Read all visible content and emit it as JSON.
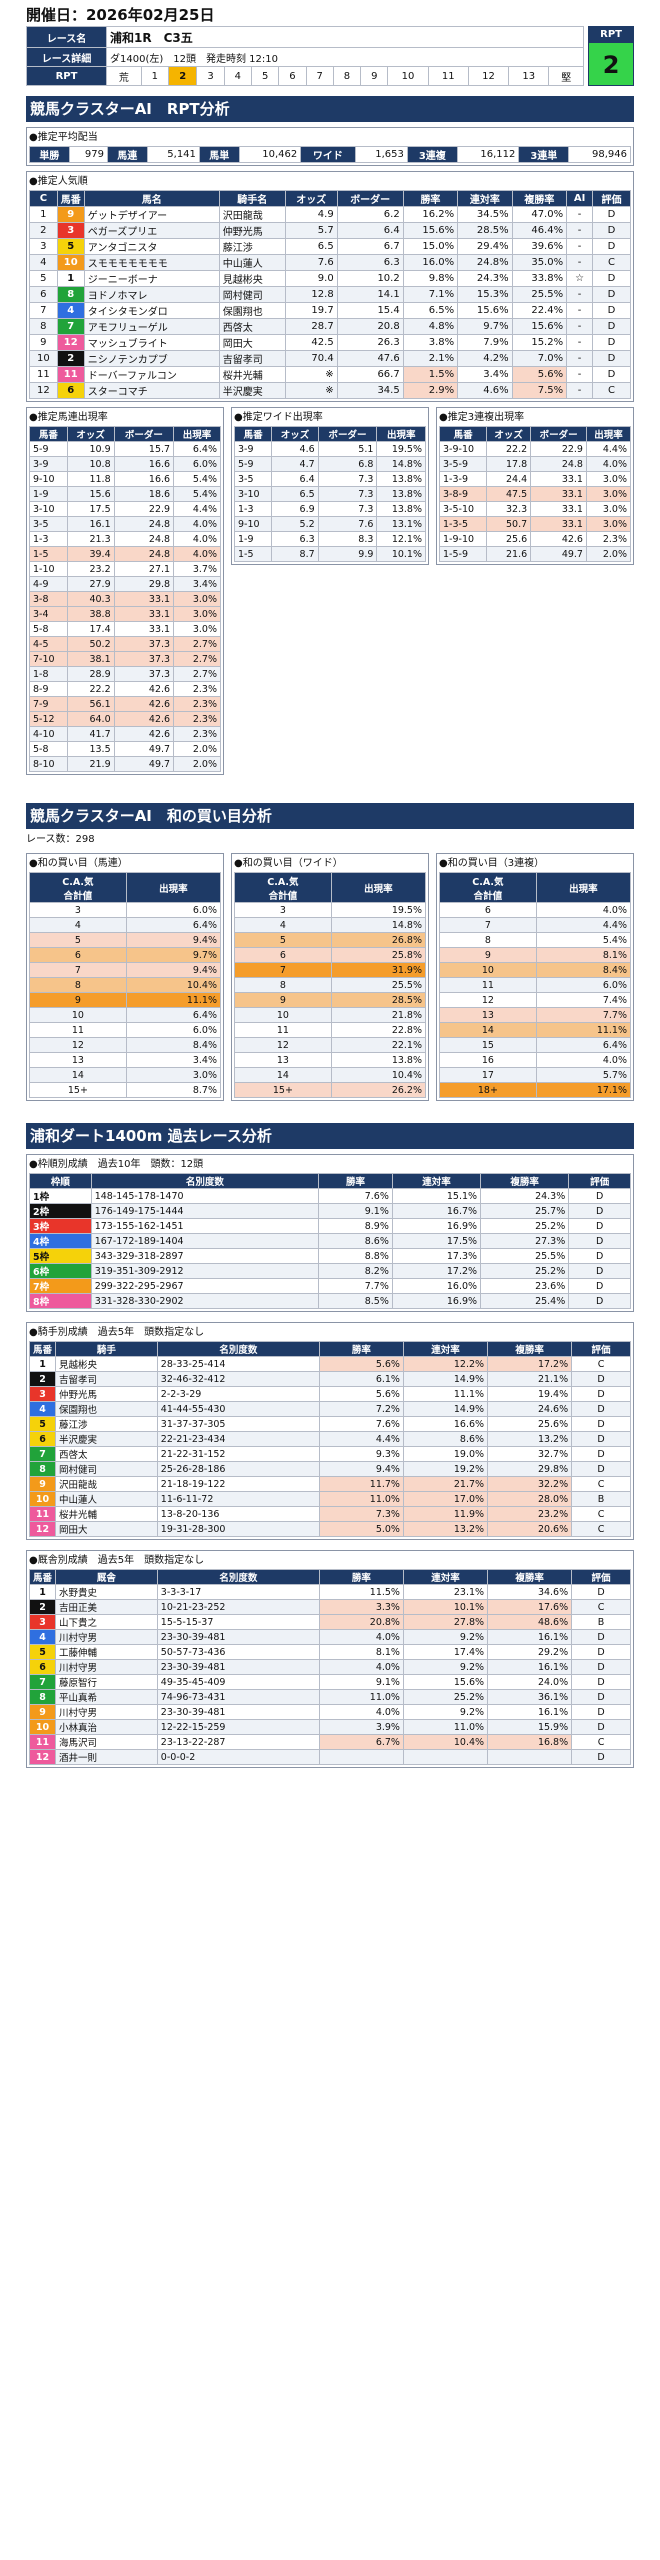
{
  "date": "開催日：2026年02月25日",
  "race": {
    "name_label": "レース名",
    "name": "浦和1R　C3五",
    "detail_label": "レース詳細",
    "detail": "ダ1400(左)　12頭　発走時刻 12:10",
    "rpt_label": "RPT",
    "rpt_value": "2",
    "rpt_cells": [
      "荒",
      "1",
      "2",
      "3",
      "4",
      "5",
      "6",
      "7",
      "8",
      "9",
      "10",
      "11",
      "12",
      "13",
      "堅"
    ]
  },
  "s1": {
    "title": "競馬クラスターAI　RPT分析",
    "payout": {
      "title": "●推定平均配当",
      "items": [
        [
          "単勝",
          "979"
        ],
        [
          "馬連",
          "5,141"
        ],
        [
          "馬単",
          "10,462"
        ],
        [
          "ワイド",
          "1,653"
        ],
        [
          "3連複",
          "16,112"
        ],
        [
          "3連単",
          "98,946"
        ]
      ]
    },
    "pop": {
      "title": "●推定人気順",
      "headers": [
        "C",
        "馬番",
        "馬名",
        "騎手名",
        "オッズ",
        "ボーダー",
        "勝率",
        "連対率",
        "複勝率",
        "AI",
        "評価"
      ],
      "rows": [
        [
          "1",
          "9",
          "ゲットデザイアー",
          "沢田龍哉",
          "4.9",
          "6.2",
          "16.2%",
          "34.5%",
          "47.0%",
          "-",
          "D"
        ],
        [
          "2",
          "3",
          "ペガーズプリエ",
          "仲野光馬",
          "5.7",
          "6.4",
          "15.6%",
          "28.5%",
          "46.4%",
          "-",
          "D"
        ],
        [
          "3",
          "5",
          "アンタゴニスタ",
          "藤江渉",
          "6.5",
          "6.7",
          "15.0%",
          "29.4%",
          "39.6%",
          "-",
          "D"
        ],
        [
          "4",
          "10",
          "スモモモモモモモ",
          "中山蓮人",
          "7.6",
          "6.3",
          "16.0%",
          "24.8%",
          "35.0%",
          "-",
          "C"
        ],
        [
          "5",
          "1",
          "ジーニーボーナ",
          "見越彬央",
          "9.0",
          "10.2",
          "9.8%",
          "24.3%",
          "33.8%",
          "☆",
          "D"
        ],
        [
          "6",
          "8",
          "ヨドノホマレ",
          "岡村健司",
          "12.8",
          "14.1",
          "7.1%",
          "15.3%",
          "25.5%",
          "-",
          "D"
        ],
        [
          "7",
          "4",
          "タイシタモンダロ",
          "保園翔也",
          "19.7",
          "15.4",
          "6.5%",
          "15.6%",
          "22.4%",
          "-",
          "D"
        ],
        [
          "8",
          "7",
          "アモフリューゲル",
          "西啓太",
          "28.7",
          "20.8",
          "4.8%",
          "9.7%",
          "15.6%",
          "-",
          "D"
        ],
        [
          "9",
          "12",
          "マッシュブライト",
          "岡田大",
          "42.5",
          "26.3",
          "3.8%",
          "7.9%",
          "15.2%",
          "-",
          "D"
        ],
        [
          "10",
          "2",
          "ニシノテンカプブ",
          "吉留孝司",
          "70.4",
          "47.6",
          "2.1%",
          "4.2%",
          "7.0%",
          "-",
          "D"
        ],
        [
          "11",
          "11",
          "ドーバーファルコン",
          "桜井光輔",
          "※",
          "66.7",
          "1.5%",
          "3.4%",
          "5.6%",
          "-",
          "D"
        ],
        [
          "12",
          "6",
          "スターコマチ",
          "半沢慶実",
          "※",
          "34.5",
          "2.9%",
          "4.6%",
          "7.5%",
          "-",
          "C"
        ]
      ]
    },
    "umaren": {
      "title": "●推定馬連出現率",
      "headers": [
        "馬番",
        "オッズ",
        "ボーダー",
        "出現率"
      ],
      "rows": [
        [
          "5-9",
          "10.9",
          "15.7",
          "6.4%"
        ],
        [
          "3-9",
          "10.8",
          "16.6",
          "6.0%"
        ],
        [
          "9-10",
          "11.8",
          "16.6",
          "5.4%"
        ],
        [
          "1-9",
          "15.6",
          "18.6",
          "5.4%"
        ],
        [
          "3-10",
          "17.5",
          "22.9",
          "4.4%"
        ],
        [
          "3-5",
          "16.1",
          "24.8",
          "4.0%"
        ],
        [
          "1-3",
          "21.3",
          "24.8",
          "4.0%"
        ],
        [
          "1-5",
          "39.4",
          "24.8",
          "4.0%"
        ],
        [
          "1-10",
          "23.2",
          "27.1",
          "3.7%"
        ],
        [
          "4-9",
          "27.9",
          "29.8",
          "3.4%"
        ],
        [
          "3-8",
          "40.3",
          "33.1",
          "3.0%"
        ],
        [
          "3-4",
          "38.8",
          "33.1",
          "3.0%"
        ],
        [
          "5-8",
          "17.4",
          "33.1",
          "3.0%"
        ],
        [
          "4-5",
          "50.2",
          "37.3",
          "2.7%"
        ],
        [
          "7-10",
          "38.1",
          "37.3",
          "2.7%"
        ],
        [
          "1-8",
          "28.9",
          "37.3",
          "2.7%"
        ],
        [
          "8-9",
          "22.2",
          "42.6",
          "2.3%"
        ],
        [
          "7-9",
          "56.1",
          "42.6",
          "2.3%"
        ],
        [
          "5-12",
          "64.0",
          "42.6",
          "2.3%"
        ],
        [
          "4-10",
          "41.7",
          "42.6",
          "2.3%"
        ],
        [
          "5-8",
          "13.5",
          "49.7",
          "2.0%"
        ],
        [
          "8-10",
          "21.9",
          "49.7",
          "2.0%"
        ]
      ]
    },
    "wide": {
      "title": "●推定ワイド出現率",
      "headers": [
        "馬番",
        "オッズ",
        "ボーダー",
        "出現率"
      ],
      "rows": [
        [
          "3-9",
          "4.6",
          "5.1",
          "19.5%"
        ],
        [
          "5-9",
          "4.7",
          "6.8",
          "14.8%"
        ],
        [
          "3-5",
          "6.4",
          "7.3",
          "13.8%"
        ],
        [
          "3-10",
          "6.5",
          "7.3",
          "13.8%"
        ],
        [
          "1-3",
          "6.9",
          "7.3",
          "13.8%"
        ],
        [
          "9-10",
          "5.2",
          "7.6",
          "13.1%"
        ],
        [
          "1-9",
          "6.3",
          "8.3",
          "12.1%"
        ],
        [
          "1-5",
          "8.7",
          "9.9",
          "10.1%"
        ]
      ]
    },
    "trio": {
      "title": "●推定3連複出現率",
      "headers": [
        "馬番",
        "オッズ",
        "ボーダー",
        "出現率"
      ],
      "rows": [
        [
          "3-9-10",
          "22.2",
          "22.9",
          "4.4%"
        ],
        [
          "3-5-9",
          "17.8",
          "24.8",
          "4.0%"
        ],
        [
          "1-3-9",
          "24.4",
          "33.1",
          "3.0%"
        ],
        [
          "3-8-9",
          "47.5",
          "33.1",
          "3.0%"
        ],
        [
          "3-5-10",
          "32.3",
          "33.1",
          "3.0%"
        ],
        [
          "1-3-5",
          "50.7",
          "33.1",
          "3.0%"
        ],
        [
          "1-9-10",
          "25.6",
          "42.6",
          "2.3%"
        ],
        [
          "1-5-9",
          "21.6",
          "49.7",
          "2.0%"
        ]
      ]
    }
  },
  "s2": {
    "title": "競馬クラスターAI　和の買い目分析",
    "count": "レース数：298",
    "tables": [
      {
        "title": "●和の買い目（馬連）",
        "h1": "C.A.気",
        "h2": "合計値",
        "h3": "出現率",
        "rows": [
          [
            "3",
            "6.0%"
          ],
          [
            "4",
            "6.4%"
          ],
          [
            "5",
            "9.4%"
          ],
          [
            "6",
            "9.7%"
          ],
          [
            "7",
            "9.4%"
          ],
          [
            "8",
            "10.4%"
          ],
          [
            "9",
            "11.1%"
          ],
          [
            "10",
            "6.4%"
          ],
          [
            "11",
            "6.0%"
          ],
          [
            "12",
            "8.4%"
          ],
          [
            "13",
            "3.4%"
          ],
          [
            "14",
            "3.0%"
          ],
          [
            "15+",
            "8.7%"
          ]
        ]
      },
      {
        "title": "●和の買い目（ワイド）",
        "h1": "C.A.気",
        "h2": "合計値",
        "h3": "出現率",
        "rows": [
          [
            "3",
            "19.5%"
          ],
          [
            "4",
            "14.8%"
          ],
          [
            "5",
            "26.8%"
          ],
          [
            "6",
            "25.8%"
          ],
          [
            "7",
            "31.9%"
          ],
          [
            "8",
            "25.5%"
          ],
          [
            "9",
            "28.5%"
          ],
          [
            "10",
            "21.8%"
          ],
          [
            "11",
            "22.8%"
          ],
          [
            "12",
            "22.1%"
          ],
          [
            "13",
            "13.8%"
          ],
          [
            "14",
            "10.4%"
          ],
          [
            "15+",
            "26.2%"
          ]
        ]
      },
      {
        "title": "●和の買い目（3連複）",
        "h1": "C.A.気",
        "h2": "合計値",
        "h3": "出現率",
        "rows": [
          [
            "6",
            "4.0%"
          ],
          [
            "7",
            "4.4%"
          ],
          [
            "8",
            "5.4%"
          ],
          [
            "9",
            "8.1%"
          ],
          [
            "10",
            "8.4%"
          ],
          [
            "11",
            "6.0%"
          ],
          [
            "12",
            "7.4%"
          ],
          [
            "13",
            "7.7%"
          ],
          [
            "14",
            "11.1%"
          ],
          [
            "15",
            "6.4%"
          ],
          [
            "16",
            "4.0%"
          ],
          [
            "17",
            "5.7%"
          ],
          [
            "18+",
            "17.1%"
          ]
        ]
      }
    ]
  },
  "s3": {
    "title": "浦和ダート1400m 過去レース分析",
    "waku": {
      "title": "●枠順別成績　過去10年　頭数：12頭",
      "headers": [
        "枠順",
        "名別度数",
        "勝率",
        "連対率",
        "複勝率",
        "評価"
      ],
      "rows": [
        [
          "1枠",
          "148-145-178-1470",
          "7.6%",
          "15.1%",
          "24.3%",
          "D"
        ],
        [
          "2枠",
          "176-149-175-1444",
          "9.1%",
          "16.7%",
          "25.7%",
          "D"
        ],
        [
          "3枠",
          "173-155-162-1451",
          "8.9%",
          "16.9%",
          "25.2%",
          "D"
        ],
        [
          "4枠",
          "167-172-189-1404",
          "8.6%",
          "17.5%",
          "27.3%",
          "D"
        ],
        [
          "5枠",
          "343-329-318-2897",
          "8.8%",
          "17.3%",
          "25.5%",
          "D"
        ],
        [
          "6枠",
          "319-351-309-2912",
          "8.2%",
          "17.2%",
          "25.2%",
          "D"
        ],
        [
          "7枠",
          "299-322-295-2967",
          "7.7%",
          "16.0%",
          "23.6%",
          "D"
        ],
        [
          "8枠",
          "331-328-330-2902",
          "8.5%",
          "16.9%",
          "25.4%",
          "D"
        ]
      ]
    },
    "jockey": {
      "title": "●騎手別成績　過去5年　頭数指定なし",
      "headers": [
        "馬番",
        "騎手",
        "名別度数",
        "勝率",
        "連対率",
        "複勝率",
        "評価"
      ],
      "rows": [
        [
          "1",
          "見越彬央",
          "28-33-25-414",
          "5.6%",
          "12.2%",
          "17.2%",
          "C"
        ],
        [
          "2",
          "吉留孝司",
          "32-46-32-412",
          "6.1%",
          "14.9%",
          "21.1%",
          "D"
        ],
        [
          "3",
          "仲野光馬",
          "2-2-3-29",
          "5.6%",
          "11.1%",
          "19.4%",
          "D"
        ],
        [
          "4",
          "保園翔也",
          "41-44-55-430",
          "7.2%",
          "14.9%",
          "24.6%",
          "D"
        ],
        [
          "5",
          "藤江渉",
          "31-37-37-305",
          "7.6%",
          "16.6%",
          "25.6%",
          "D"
        ],
        [
          "6",
          "半沢慶実",
          "22-21-23-434",
          "4.4%",
          "8.6%",
          "13.2%",
          "D"
        ],
        [
          "7",
          "西啓太",
          "21-22-31-152",
          "9.3%",
          "19.0%",
          "32.7%",
          "D"
        ],
        [
          "8",
          "岡村健司",
          "25-26-28-186",
          "9.4%",
          "19.2%",
          "29.8%",
          "D"
        ],
        [
          "9",
          "沢田龍哉",
          "21-18-19-122",
          "11.7%",
          "21.7%",
          "32.2%",
          "C"
        ],
        [
          "10",
          "中山蓮人",
          "11-6-11-72",
          "11.0%",
          "17.0%",
          "28.0%",
          "B"
        ],
        [
          "11",
          "桜井光輔",
          "13-8-20-136",
          "7.3%",
          "11.9%",
          "23.2%",
          "C"
        ],
        [
          "12",
          "岡田大",
          "19-31-28-300",
          "5.0%",
          "13.2%",
          "20.6%",
          "C"
        ]
      ]
    },
    "trainer": {
      "title": "●厩舎別成績　過去5年　頭数指定なし",
      "headers": [
        "馬番",
        "厩舎",
        "名別度数",
        "勝率",
        "連対率",
        "複勝率",
        "評価"
      ],
      "rows": [
        [
          "1",
          "水野貴史",
          "3-3-3-17",
          "11.5%",
          "23.1%",
          "34.6%",
          "D"
        ],
        [
          "2",
          "吉田正美",
          "10-21-23-252",
          "3.3%",
          "10.1%",
          "17.6%",
          "C"
        ],
        [
          "3",
          "山下貴之",
          "15-5-15-37",
          "20.8%",
          "27.8%",
          "48.6%",
          "B"
        ],
        [
          "4",
          "川村守男",
          "23-30-39-481",
          "4.0%",
          "9.2%",
          "16.1%",
          "D"
        ],
        [
          "5",
          "工藤伸輔",
          "50-57-73-436",
          "8.1%",
          "17.4%",
          "29.2%",
          "D"
        ],
        [
          "6",
          "川村守男",
          "23-30-39-481",
          "4.0%",
          "9.2%",
          "16.1%",
          "D"
        ],
        [
          "7",
          "藤原智行",
          "49-35-45-409",
          "9.1%",
          "15.6%",
          "24.0%",
          "D"
        ],
        [
          "8",
          "平山真希",
          "74-96-73-431",
          "11.0%",
          "25.2%",
          "36.1%",
          "D"
        ],
        [
          "9",
          "川村守男",
          "23-30-39-481",
          "4.0%",
          "9.2%",
          "16.1%",
          "D"
        ],
        [
          "10",
          "小林真治",
          "12-22-15-259",
          "3.9%",
          "11.0%",
          "15.9%",
          "D"
        ],
        [
          "11",
          "海馬沢司",
          "23-13-22-287",
          "6.7%",
          "10.4%",
          "16.8%",
          "C"
        ],
        [
          "12",
          "酒井一則",
          "0-0-0-2",
          "",
          "",
          "",
          "D"
        ]
      ]
    }
  },
  "colors": {
    "navy": "#1e3a66",
    "rpt_green": "#35d34a",
    "rpt_select": "#f5b400"
  }
}
